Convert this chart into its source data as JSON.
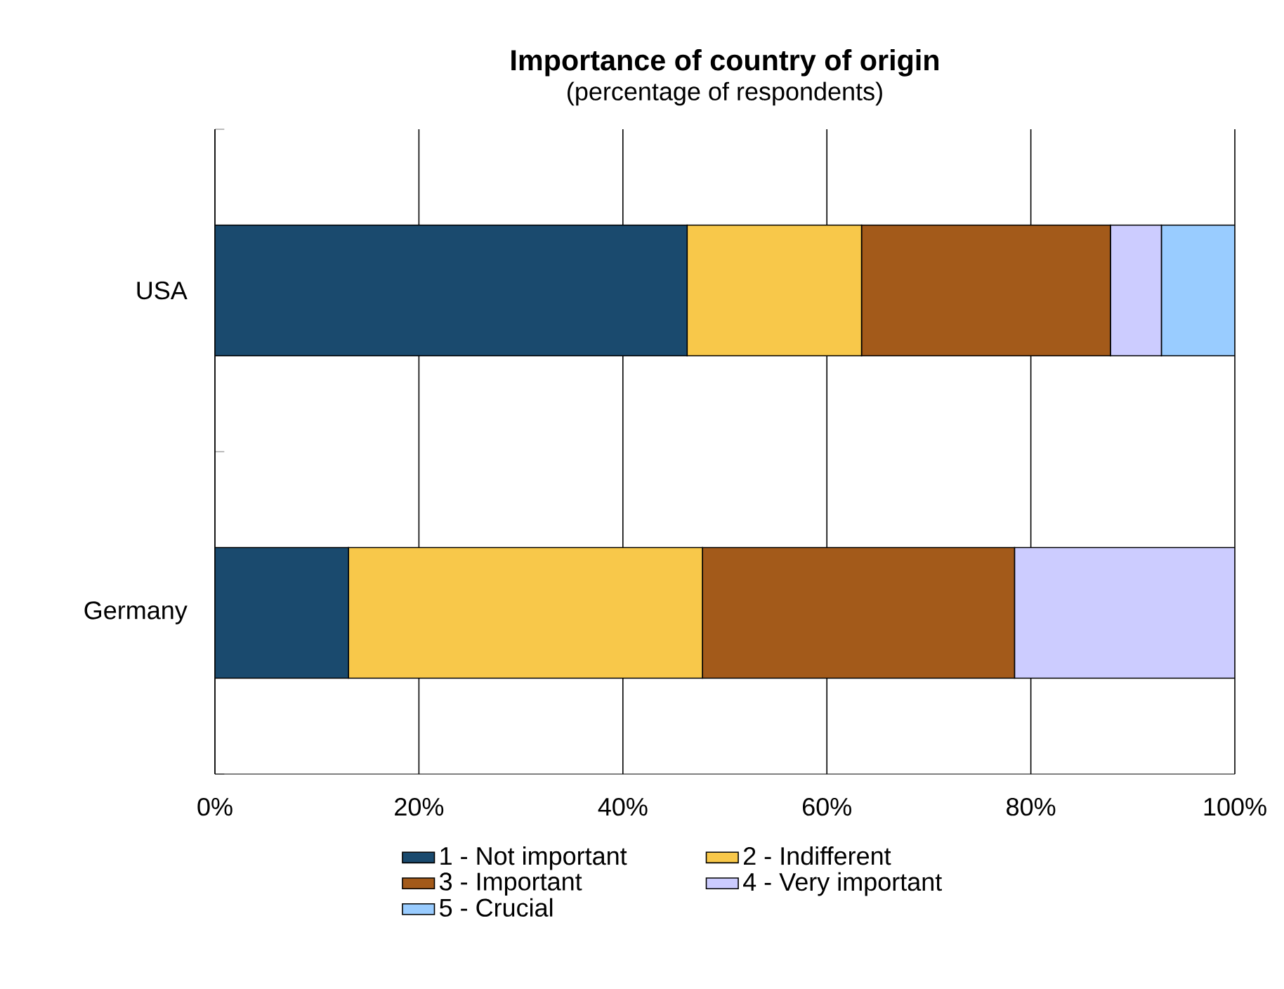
{
  "chart_data": {
    "type": "bar",
    "orientation": "horizontal",
    "stacked": true,
    "title": "Importance of country of origin",
    "subtitle": "(percentage of respondents)",
    "categories": [
      "USA",
      "Germany"
    ],
    "series": [
      {
        "name": "1 - Not important",
        "color": "#1a4a6e",
        "values": [
          46.3,
          13.1
        ]
      },
      {
        "name": "2 - Indifferent",
        "color": "#f8c84a",
        "values": [
          17.1,
          34.7
        ]
      },
      {
        "name": "3 - Important",
        "color": "#a35a1a",
        "values": [
          24.4,
          30.6
        ]
      },
      {
        "name": "4 - Very important",
        "color": "#ccccff",
        "values": [
          5.0,
          21.6
        ]
      },
      {
        "name": "5 - Crucial",
        "color": "#99ccff",
        "values": [
          7.2,
          null
        ]
      }
    ],
    "xlim": [
      0,
      100
    ],
    "xticks": [
      {
        "value": 0,
        "label": "0%"
      },
      {
        "value": 20,
        "label": "20%"
      },
      {
        "value": 40,
        "label": "40%"
      },
      {
        "value": 60,
        "label": "60%"
      },
      {
        "value": 80,
        "label": "80%"
      },
      {
        "value": 100,
        "label": "100%"
      }
    ],
    "grid": "x",
    "legend": "bottom"
  }
}
